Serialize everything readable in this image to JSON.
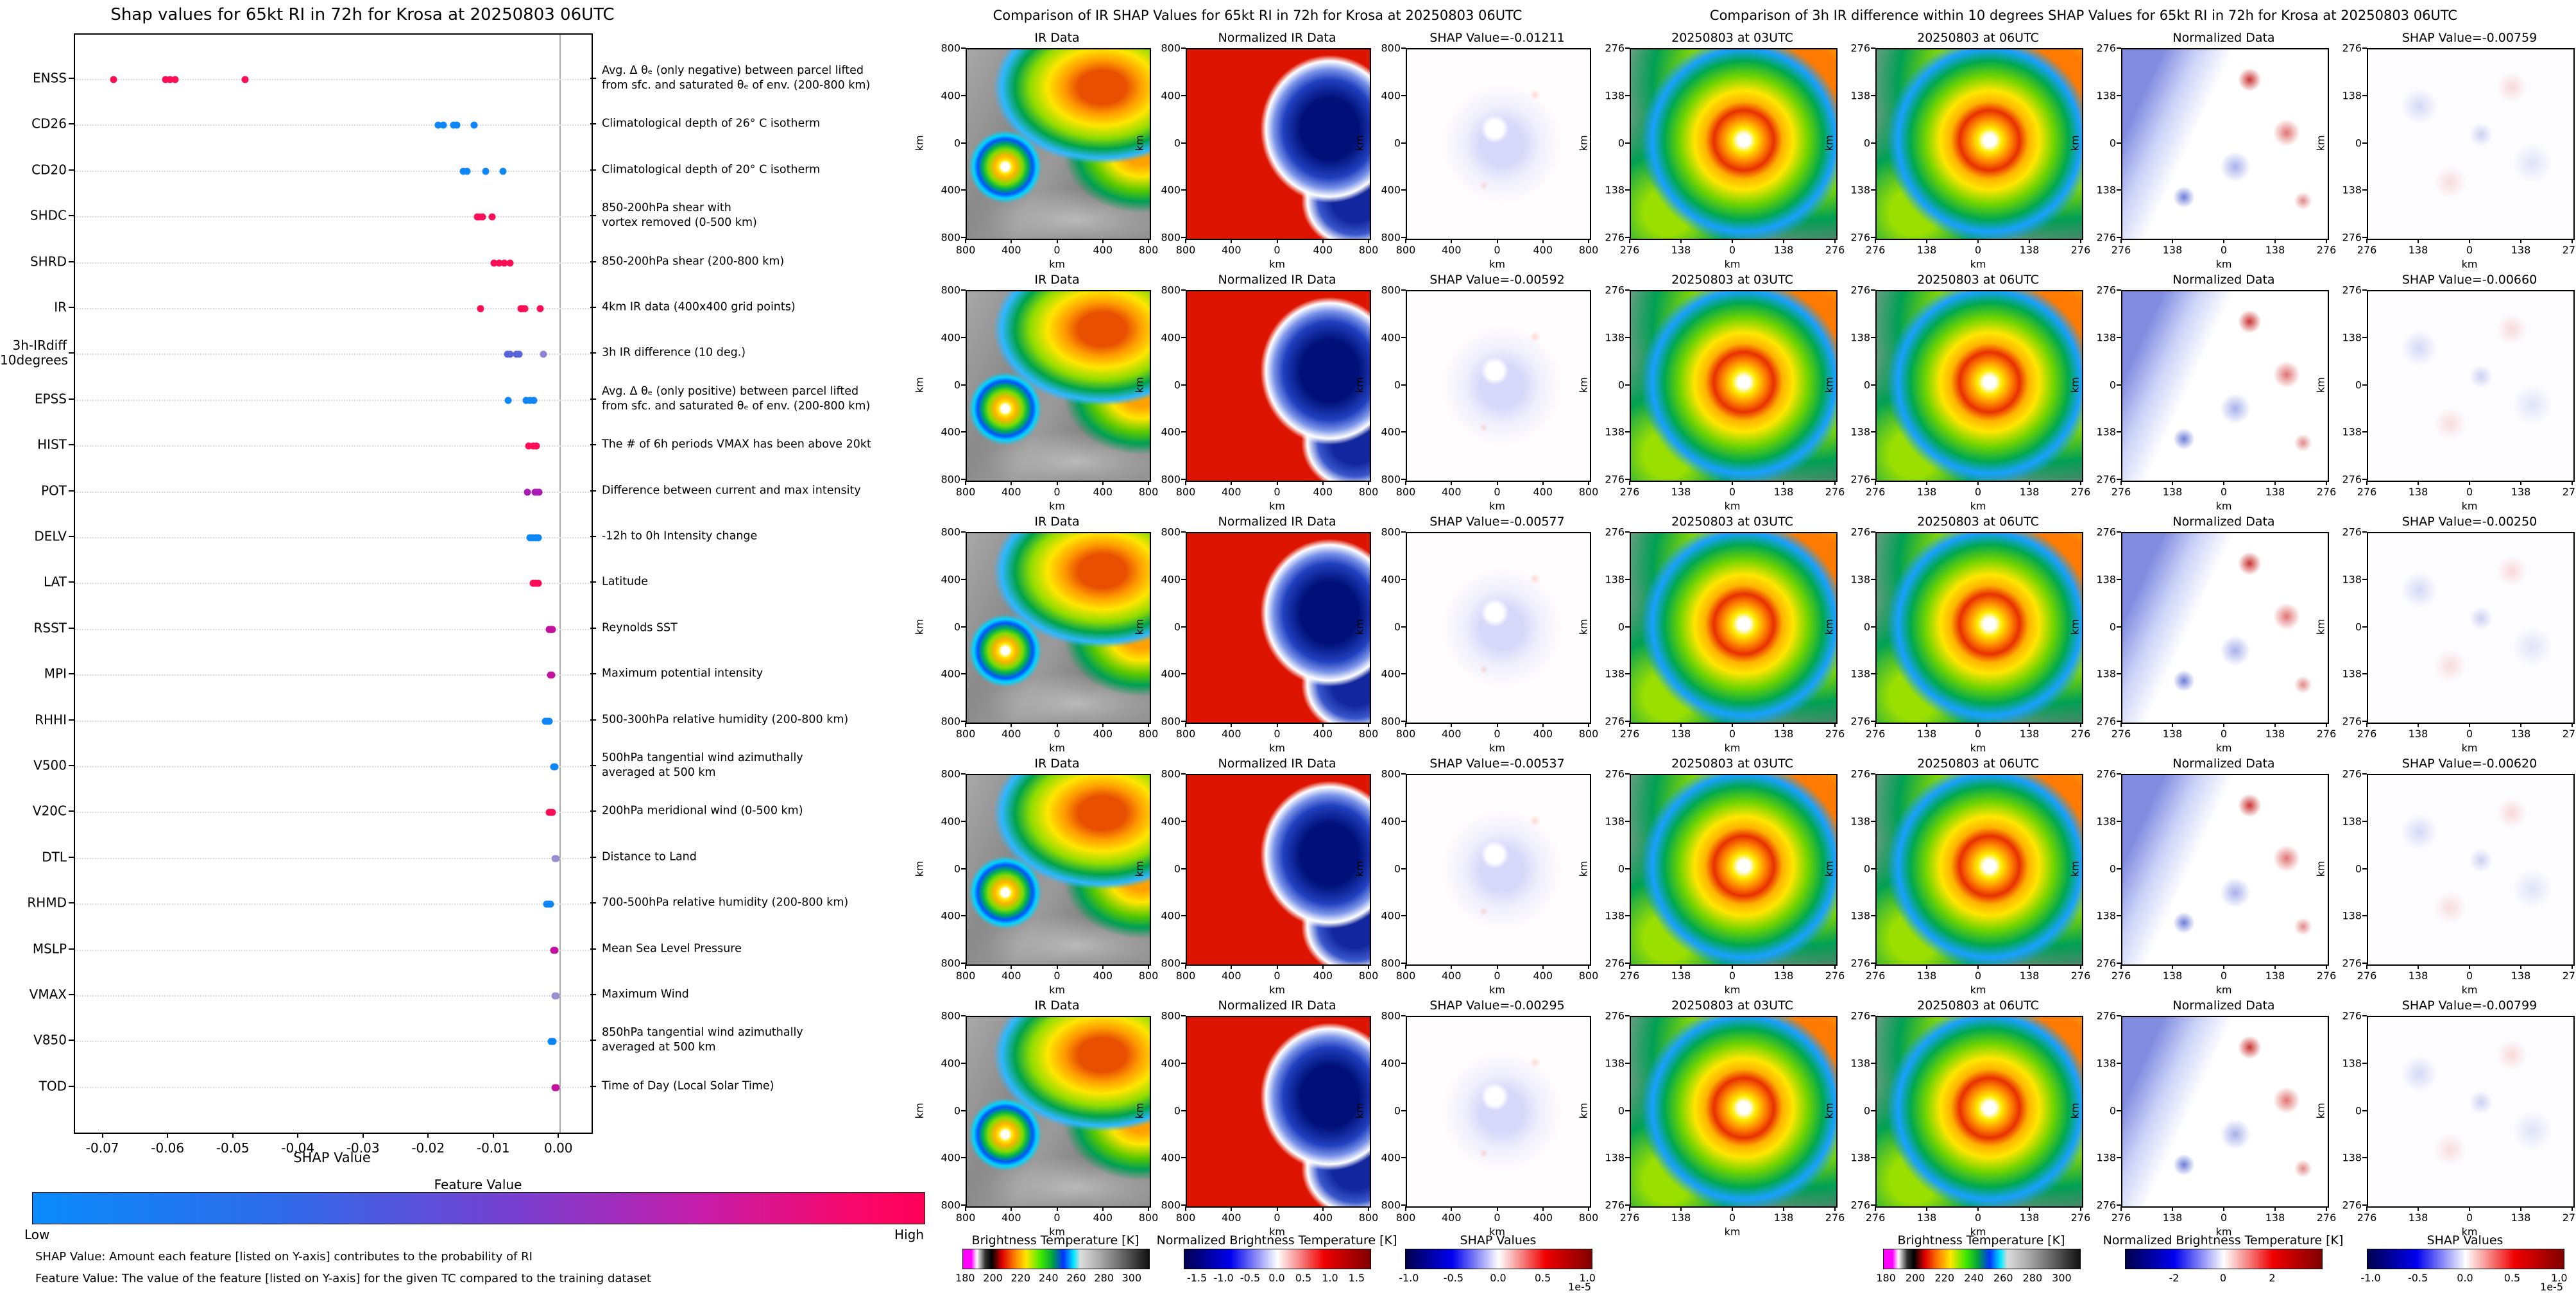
{
  "left_panel": {
    "title": "Shap values for 65kt RI in 72h for Krosa at 20250803 06UTC",
    "xlabel": "SHAP Value",
    "xticks": [
      "-0.07",
      "-0.06",
      "-0.05",
      "-0.04",
      "-0.03",
      "-0.02",
      "-0.01",
      "0.00"
    ],
    "xtick_values": [
      -0.07,
      -0.06,
      -0.05,
      -0.04,
      -0.03,
      -0.02,
      -0.01,
      0.0
    ],
    "xlim": [
      -0.0744,
      0.0049
    ],
    "colorbar": {
      "title": "Feature Value",
      "low": "Low",
      "high": "High",
      "low_color": "#008bfb",
      "high_color": "#ff0057"
    },
    "footnotes": [
      "SHAP Value: Amount each feature [listed on Y-axis] contributes to the probability of RI",
      "Feature Value: The value of the feature [listed on Y-axis] for the given TC compared to the training dataset"
    ],
    "features": [
      {
        "code": "ENSS",
        "desc": "Avg. Δ θₑ (only negative) between parcel lifted\nfrom sfc. and saturated θₑ of env. (200-800 km)",
        "dots": [
          [
            -0.0685,
            "#ff0d57"
          ],
          [
            -0.0605,
            "#ff0d57"
          ],
          [
            -0.0598,
            "#ff0d57"
          ],
          [
            -0.059,
            "#ff0d57"
          ],
          [
            -0.0483,
            "#ff0d57"
          ]
        ]
      },
      {
        "code": "CD26",
        "desc": "Climatological depth of 26° C isotherm",
        "dots": [
          [
            -0.0186,
            "#0d86f8"
          ],
          [
            -0.0179,
            "#0d86f8"
          ],
          [
            -0.0163,
            "#0d86f8"
          ],
          [
            -0.0158,
            "#0d86f8"
          ],
          [
            -0.0131,
            "#0d86f8"
          ]
        ]
      },
      {
        "code": "CD20",
        "desc": "Climatological depth of 20° C isotherm",
        "dots": [
          [
            -0.0148,
            "#0d86f8"
          ],
          [
            -0.0142,
            "#0d86f8"
          ],
          [
            -0.0114,
            "#0d86f8"
          ],
          [
            -0.0087,
            "#0d86f8"
          ]
        ]
      },
      {
        "code": "SHDC",
        "desc": "850-200hPa shear with\nvortex removed (0-500 km)",
        "dots": [
          [
            -0.0126,
            "#ff0d57"
          ],
          [
            -0.0123,
            "#ff0d57"
          ],
          [
            -0.0118,
            "#ff0d57"
          ],
          [
            -0.0104,
            "#ff0d57"
          ]
        ]
      },
      {
        "code": "SHRD",
        "desc": "850-200hPa shear (200-800 km)",
        "dots": [
          [
            -0.0101,
            "#ff0d57"
          ],
          [
            -0.0093,
            "#ff0d57"
          ],
          [
            -0.0085,
            "#ff0d57"
          ],
          [
            -0.0076,
            "#ff0d57"
          ]
        ]
      },
      {
        "code": "IR",
        "desc": "4km IR data (400x400 grid points)",
        "dots": [
          [
            -0.01211,
            "#ff0d57"
          ],
          [
            -0.00592,
            "#ff0d57"
          ],
          [
            -0.00577,
            "#ff0d57"
          ],
          [
            -0.00537,
            "#ff0d57"
          ],
          [
            -0.00295,
            "#ff0d57"
          ]
        ]
      },
      {
        "code": "3h-IRdiff\n10degrees",
        "desc": "3h IR difference (10 deg.)",
        "dots": [
          [
            -0.00799,
            "#5a64d8"
          ],
          [
            -0.00759,
            "#5a64d8"
          ],
          [
            -0.0066,
            "#5a64d8"
          ],
          [
            -0.0062,
            "#5a64d8"
          ],
          [
            -0.0025,
            "#8f83d6"
          ]
        ]
      },
      {
        "code": "EPSS",
        "desc": "Avg. Δ θₑ (only positive) between parcel lifted\nfrom sfc. and saturated θₑ of env. (200-800 km)",
        "dots": [
          [
            -0.0079,
            "#0d86f8"
          ],
          [
            -0.0051,
            "#0d86f8"
          ],
          [
            -0.0046,
            "#0d86f8"
          ],
          [
            -0.004,
            "#0d86f8"
          ]
        ]
      },
      {
        "code": "HIST",
        "desc": "The # of 6h periods VMAX has been above 20kt",
        "dots": [
          [
            -0.0048,
            "#ff0d57"
          ],
          [
            -0.0041,
            "#ff0d57"
          ],
          [
            -0.0036,
            "#ff0d57"
          ]
        ]
      },
      {
        "code": "POT",
        "desc": "Difference between current and max intensity",
        "dots": [
          [
            -0.005,
            "#a81cb4"
          ],
          [
            -0.0038,
            "#a81cb4"
          ],
          [
            -0.0035,
            "#a81cb4"
          ],
          [
            -0.0032,
            "#a81cb4"
          ]
        ]
      },
      {
        "code": "DELV",
        "desc": "-12h to 0h Intensity change",
        "dots": [
          [
            -0.0046,
            "#0d86f8"
          ],
          [
            -0.0042,
            "#0d86f8"
          ],
          [
            -0.0037,
            "#0d86f8"
          ],
          [
            -0.0033,
            "#0d86f8"
          ]
        ]
      },
      {
        "code": "LAT",
        "desc": "Latitude",
        "dots": [
          [
            -0.0041,
            "#ff0d57"
          ],
          [
            -0.0037,
            "#ff0d57"
          ],
          [
            -0.0033,
            "#ff0d57"
          ]
        ]
      },
      {
        "code": "RSST",
        "desc": "Reynolds SST",
        "dots": [
          [
            -0.0016,
            "#c2109f"
          ],
          [
            -0.0013,
            "#c2109f"
          ],
          [
            -0.0011,
            "#c2109f"
          ]
        ]
      },
      {
        "code": "MPI",
        "desc": "Maximum potential intensity",
        "dots": [
          [
            -0.0014,
            "#c2109f"
          ],
          [
            -0.0012,
            "#c2109f"
          ]
        ]
      },
      {
        "code": "RHHI",
        "desc": "500-300hPa relative humidity (200-800 km)",
        "dots": [
          [
            -0.0022,
            "#0d86f8"
          ],
          [
            -0.0019,
            "#0d86f8"
          ],
          [
            -0.0016,
            "#0d86f8"
          ]
        ]
      },
      {
        "code": "V500",
        "desc": "500hPa tangential wind azimuthally\naveraged at 500 km",
        "dots": [
          [
            -0.0009,
            "#0d86f8"
          ],
          [
            -0.0007,
            "#0d86f8"
          ]
        ]
      },
      {
        "code": "V20C",
        "desc": "200hPa meridional wind (0-500 km)",
        "dots": [
          [
            -0.0016,
            "#ff0d57"
          ],
          [
            -0.0013,
            "#ff0d57"
          ],
          [
            -0.0011,
            "#ff0d57"
          ]
        ]
      },
      {
        "code": "DTL",
        "desc": "Distance to Land",
        "dots": [
          [
            -0.0007,
            "#9b8fcf"
          ],
          [
            -0.0005,
            "#9b8fcf"
          ]
        ]
      },
      {
        "code": "RHMD",
        "desc": "700-500hPa relative humidity (200-800 km)",
        "dots": [
          [
            -0.002,
            "#0d86f8"
          ],
          [
            -0.0017,
            "#0d86f8"
          ],
          [
            -0.0014,
            "#0d86f8"
          ]
        ]
      },
      {
        "code": "MSLP",
        "desc": "Mean Sea Level Pressure",
        "dots": [
          [
            -0.0009,
            "#c2109f"
          ],
          [
            -0.0007,
            "#c2109f"
          ]
        ]
      },
      {
        "code": "VMAX",
        "desc": "Maximum Wind",
        "dots": [
          [
            -0.0007,
            "#9b8fcf"
          ],
          [
            -0.0005,
            "#9b8fcf"
          ]
        ]
      },
      {
        "code": "V850",
        "desc": "850hPa tangential wind azimuthally\naveraged at 500 km",
        "dots": [
          [
            -0.0013,
            "#0d86f8"
          ],
          [
            -0.001,
            "#0d86f8"
          ]
        ]
      },
      {
        "code": "TOD",
        "desc": "Time of Day (Local Solar Time)",
        "dots": [
          [
            -0.0007,
            "#c2109f"
          ],
          [
            -0.0005,
            "#c2109f"
          ]
        ]
      }
    ]
  },
  "middle_panel": {
    "title": "Comparison of IR SHAP Values for 65kt RI in 72h for Krosa at 20250803 06UTC",
    "col_titles": [
      "IR Data",
      "Normalized IR Data"
    ],
    "rows": [
      {
        "shap_title": "SHAP Value=-0.01211"
      },
      {
        "shap_title": "SHAP Value=-0.00592"
      },
      {
        "shap_title": "SHAP Value=-0.00577"
      },
      {
        "shap_title": "SHAP Value=-0.00537"
      },
      {
        "shap_title": "SHAP Value=-0.00295"
      }
    ],
    "yticks": [
      "800",
      "400",
      "0",
      "400",
      "800"
    ],
    "xticks": [
      "800",
      "400",
      "0",
      "400",
      "800"
    ],
    "axis_label": "km",
    "colorbars": [
      {
        "title": "Brightness Temperature [K]",
        "ticks": [
          "180",
          "200",
          "220",
          "240",
          "260",
          "280",
          "300"
        ]
      },
      {
        "title": "Normalized Brightness Temperature [K]",
        "ticks": [
          "-1.5",
          "-1.0",
          "-0.5",
          "0.0",
          "0.5",
          "1.0",
          "1.5"
        ]
      },
      {
        "title": "SHAP Values",
        "ticks": [
          "-1.0",
          "-0.5",
          "0.0",
          "0.5",
          "1.0"
        ],
        "exponent": "1e-5"
      }
    ]
  },
  "right_panel": {
    "title": "Comparison of 3h IR difference within 10 degrees SHAP Values for 65kt RI in 72h for Krosa at 20250803 06UTC",
    "col_titles": [
      "20250803 at 03UTC",
      "20250803 at 06UTC",
      "Normalized Data"
    ],
    "rows": [
      {
        "shap_title": "SHAP Value=-0.00759"
      },
      {
        "shap_title": "SHAP Value=-0.00660"
      },
      {
        "shap_title": "SHAP Value=-0.00250"
      },
      {
        "shap_title": "SHAP Value=-0.00620"
      },
      {
        "shap_title": "SHAP Value=-0.00799"
      }
    ],
    "ticks": [
      "276",
      "138",
      "0",
      "138",
      "276"
    ],
    "axis_label": "km",
    "colorbars": [
      {
        "title": "Brightness Temperature [K]",
        "ticks": [
          "180",
          "200",
          "220",
          "240",
          "260",
          "280",
          "300"
        ]
      },
      {
        "title": "Normalized Brightness Temperature [K]",
        "ticks": [
          "-2",
          "0",
          "2"
        ]
      },
      {
        "title": "SHAP Values",
        "ticks": [
          "-1.0",
          "-0.5",
          "0.0",
          "0.5",
          "1.0"
        ],
        "exponent": "1e-5"
      }
    ]
  },
  "chart_data": [
    {
      "type": "scatter",
      "title": "Shap values for 65kt RI in 72h for Krosa at 20250803 06UTC",
      "xlabel": "SHAP Value",
      "xlim": [
        -0.0744,
        0.0049
      ],
      "grid": "horizontal dotted per category, vertical reference line at 0.00",
      "legend_position": "colorbar below (Feature Value, Low=blue to High=pink)",
      "categories": [
        "ENSS",
        "CD26",
        "CD20",
        "SHDC",
        "SHRD",
        "IR",
        "3h-IRdiff 10degrees",
        "EPSS",
        "HIST",
        "POT",
        "DELV",
        "LAT",
        "RSST",
        "MPI",
        "RHHI",
        "V500",
        "V20C",
        "DTL",
        "RHMD",
        "MSLP",
        "VMAX",
        "V850",
        "TOD"
      ],
      "series": [
        {
          "name": "ENSS",
          "values": [
            -0.0685,
            -0.0605,
            -0.0598,
            -0.059,
            -0.0483
          ]
        },
        {
          "name": "CD26",
          "values": [
            -0.0186,
            -0.0179,
            -0.0163,
            -0.0158,
            -0.0131
          ]
        },
        {
          "name": "CD20",
          "values": [
            -0.0148,
            -0.0142,
            -0.0114,
            -0.0087
          ]
        },
        {
          "name": "SHDC",
          "values": [
            -0.0126,
            -0.0123,
            -0.0118,
            -0.0104
          ]
        },
        {
          "name": "SHRD",
          "values": [
            -0.0101,
            -0.0093,
            -0.0085,
            -0.0076
          ]
        },
        {
          "name": "IR",
          "values": [
            -0.01211,
            -0.00592,
            -0.00577,
            -0.00537,
            -0.00295
          ]
        },
        {
          "name": "3h-IRdiff 10degrees",
          "values": [
            -0.00799,
            -0.00759,
            -0.0066,
            -0.0062,
            -0.0025
          ]
        },
        {
          "name": "EPSS",
          "values": [
            -0.0079,
            -0.0051,
            -0.0046,
            -0.004
          ]
        },
        {
          "name": "HIST",
          "values": [
            -0.0048,
            -0.0041,
            -0.0036
          ]
        },
        {
          "name": "POT",
          "values": [
            -0.005,
            -0.0038,
            -0.0035,
            -0.0032
          ]
        },
        {
          "name": "DELV",
          "values": [
            -0.0046,
            -0.0042,
            -0.0037,
            -0.0033
          ]
        },
        {
          "name": "LAT",
          "values": [
            -0.0041,
            -0.0037,
            -0.0033
          ]
        },
        {
          "name": "RSST",
          "values": [
            -0.0016,
            -0.0013,
            -0.0011
          ]
        },
        {
          "name": "MPI",
          "values": [
            -0.0014,
            -0.0012
          ]
        },
        {
          "name": "RHHI",
          "values": [
            -0.0022,
            -0.0019,
            -0.0016
          ]
        },
        {
          "name": "V500",
          "values": [
            -0.0009,
            -0.0007
          ]
        },
        {
          "name": "V20C",
          "values": [
            -0.0016,
            -0.0013,
            -0.0011
          ]
        },
        {
          "name": "DTL",
          "values": [
            -0.0007,
            -0.0005
          ]
        },
        {
          "name": "RHMD",
          "values": [
            -0.002,
            -0.0017,
            -0.0014
          ]
        },
        {
          "name": "MSLP",
          "values": [
            -0.0009,
            -0.0007
          ]
        },
        {
          "name": "VMAX",
          "values": [
            -0.0007,
            -0.0005
          ]
        },
        {
          "name": "V850",
          "values": [
            -0.0013,
            -0.001
          ]
        },
        {
          "name": "TOD",
          "values": [
            -0.0007,
            -0.0005
          ]
        }
      ]
    },
    {
      "type": "heatmap",
      "title": "Comparison of IR SHAP Values for 65kt RI in 72h for Krosa at 20250803 06UTC",
      "grid": "5 rows x 3 columns",
      "columns": [
        "IR Data",
        "Normalized IR Data",
        "SHAP Value map"
      ],
      "row_shap_values": [
        -0.01211,
        -0.00592,
        -0.00577,
        -0.00537,
        -0.00295
      ],
      "axis_range_km": [
        -800,
        800
      ],
      "axis_ticks_km": [
        800,
        400,
        0,
        400,
        800
      ],
      "colorbars": [
        {
          "label": "Brightness Temperature [K]",
          "ticks": [
            180,
            200,
            220,
            240,
            260,
            280,
            300
          ]
        },
        {
          "label": "Normalized Brightness Temperature [K]",
          "ticks": [
            -1.5,
            -1.0,
            -0.5,
            0.0,
            0.5,
            1.0,
            1.5
          ]
        },
        {
          "label": "SHAP Values",
          "ticks": [
            -1.0,
            -0.5,
            0.0,
            0.5,
            1.0
          ],
          "scale": "1e-5"
        }
      ]
    },
    {
      "type": "heatmap",
      "title": "Comparison of 3h IR difference within 10 degrees SHAP Values for 65kt RI in 72h for Krosa at 20250803 06UTC",
      "grid": "5 rows x 4 columns",
      "columns": [
        "20250803 at 03UTC",
        "20250803 at 06UTC",
        "Normalized Data",
        "SHAP Value map"
      ],
      "row_shap_values": [
        -0.00759,
        -0.0066,
        -0.0025,
        -0.0062,
        -0.00799
      ],
      "axis_range_km": [
        -276,
        276
      ],
      "axis_ticks_km": [
        276,
        138,
        0,
        138,
        276
      ],
      "colorbars": [
        {
          "label": "Brightness Temperature [K]",
          "ticks": [
            180,
            200,
            220,
            240,
            260,
            280,
            300
          ]
        },
        {
          "label": "Normalized Brightness Temperature [K]",
          "ticks": [
            -2,
            0,
            2
          ]
        },
        {
          "label": "SHAP Values",
          "ticks": [
            -1.0,
            -0.5,
            0.0,
            0.5,
            1.0
          ],
          "scale": "1e-5"
        }
      ]
    }
  ]
}
